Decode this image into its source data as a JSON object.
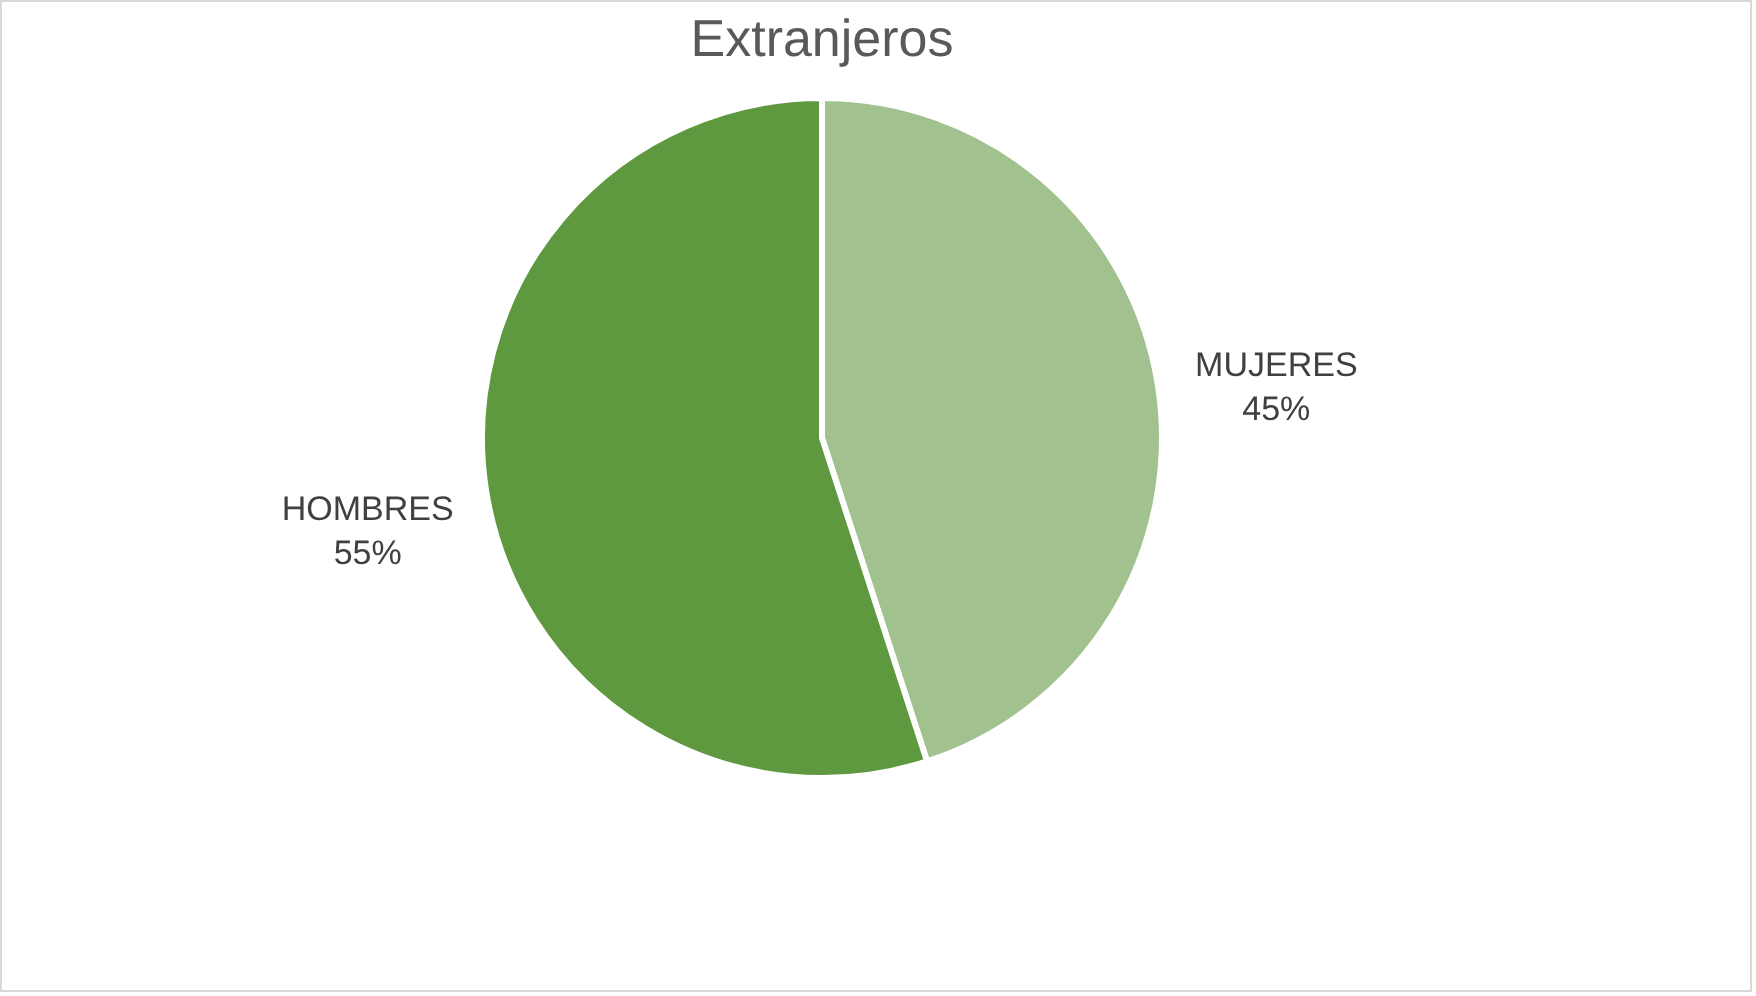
{
  "chart_data": {
    "type": "pie",
    "title": "Extranjeros",
    "categories": [
      "MUJERES",
      "HOMBRES"
    ],
    "values": [
      45,
      55
    ],
    "value_labels": [
      "45%",
      "55%"
    ],
    "colors": [
      "#a1c18f",
      "#5f993f"
    ],
    "legend": false
  }
}
